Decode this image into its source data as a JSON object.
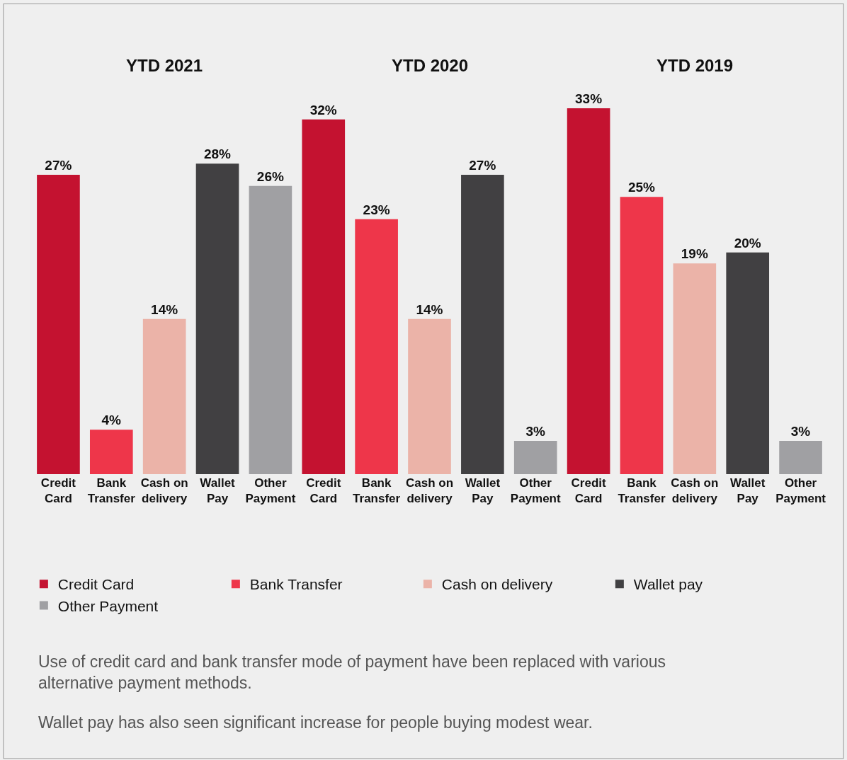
{
  "chart_data": {
    "type": "bar",
    "categories": [
      "Credit Card",
      "Bank Transfer",
      "Cash on delivery",
      "Wallet Pay",
      "Other Payment",
      "Credit Card",
      "Bank Transfer",
      "Cash on delivery",
      "Wallet Pay",
      "Other Payment",
      "Credit Card",
      "Bank Transfer",
      "Cash on delivery",
      "Wallet Pay",
      "Other Payment"
    ],
    "legend": "bottom",
    "series": [
      {
        "name": "Credit Card",
        "color": "#c41230",
        "values": [
          27,
          null,
          null,
          null,
          null,
          32,
          null,
          null,
          null,
          null,
          33,
          null,
          null,
          null,
          null
        ],
        "value_labels": [
          "27%",
          null,
          null,
          null,
          null,
          "32%",
          null,
          null,
          null,
          null,
          "33%",
          null,
          null,
          null,
          null
        ]
      },
      {
        "name": "Bank Transfer",
        "color": "#ee364a",
        "values": [
          null,
          4,
          null,
          null,
          null,
          null,
          23,
          null,
          null,
          null,
          null,
          25,
          null,
          null,
          null
        ],
        "value_labels": [
          null,
          "4%",
          null,
          null,
          null,
          null,
          "23%",
          null,
          null,
          null,
          null,
          "25%",
          null,
          null,
          null
        ]
      },
      {
        "name": "Cash on delivery",
        "color": "#ebb3a8",
        "values": [
          null,
          null,
          14,
          null,
          null,
          null,
          null,
          14,
          null,
          null,
          null,
          null,
          19,
          null,
          null
        ],
        "value_labels": [
          null,
          null,
          "14%",
          null,
          null,
          null,
          null,
          "14%",
          null,
          null,
          null,
          null,
          "19%",
          null,
          null
        ]
      },
      {
        "name": "Wallet pay",
        "color": "#414042",
        "values": [
          null,
          null,
          null,
          28,
          null,
          null,
          null,
          null,
          27,
          null,
          null,
          null,
          null,
          20,
          null
        ],
        "value_labels": [
          null,
          null,
          null,
          "28%",
          null,
          null,
          null,
          null,
          "27%",
          null,
          null,
          null,
          null,
          "20%",
          null
        ]
      },
      {
        "name": "Other Payment",
        "color": "#a0a0a3",
        "values": [
          null,
          null,
          null,
          null,
          26,
          null,
          null,
          null,
          null,
          3,
          null,
          null,
          null,
          null,
          3
        ],
        "value_labels": [
          null,
          null,
          null,
          null,
          "26%",
          null,
          null,
          null,
          null,
          "3%",
          null,
          null,
          null,
          null,
          "3%"
        ]
      }
    ],
    "annotations": [
      "YTD 2021",
      "YTD 2020",
      "YTD 2019",
      "Use of credit card and bank transfer mode of payment have been replaced with various alternative payment methods.",
      "Wallet pay has also seen significant increase for people buying modest wear."
    ]
  }
}
